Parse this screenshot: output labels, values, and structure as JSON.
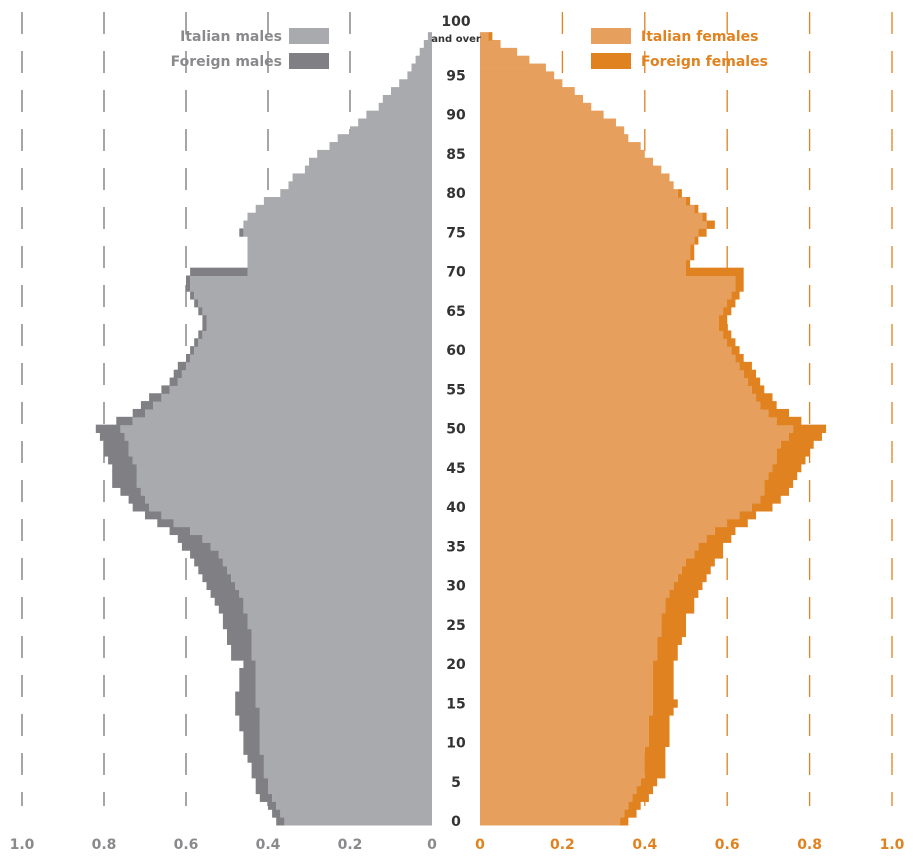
{
  "chart_data": {
    "type": "bar",
    "orientation": "horizontal",
    "colors": {
      "italian_males": "#a9aaae",
      "foreign_males": "#808084",
      "italian_females": "#e69f5c",
      "foreign_females": "#e0821f",
      "male_axis": "#8a8a8d",
      "female_axis": "#e0821f",
      "grid_male": "#777777",
      "grid_female": "#e0821f"
    },
    "legend": {
      "placement": "top",
      "males": [
        "Italian males",
        "Foreign males"
      ],
      "females": [
        "Italian females",
        "Foreign females"
      ]
    },
    "male_axis": {
      "reversed": true,
      "xlim": [
        0,
        1.0
      ],
      "tick_labels": [
        "1.0",
        "0.8",
        "0.6",
        "0.4",
        "0.2",
        "0"
      ]
    },
    "female_axis": {
      "xlim": [
        0,
        1.0
      ],
      "tick_labels": [
        "0",
        "0.2",
        "0.4",
        "0.6",
        "0.8",
        "1.0"
      ]
    },
    "grid": true,
    "age_labels": [
      "100",
      "95",
      "90",
      "85",
      "80",
      "75",
      "70",
      "65",
      "60",
      "55",
      "50",
      "45",
      "40",
      "35",
      "30",
      "25",
      "20",
      "15",
      "10",
      "5",
      "0"
    ],
    "age_label_values": [
      100,
      95,
      90,
      85,
      80,
      75,
      70,
      65,
      60,
      55,
      50,
      45,
      40,
      35,
      30,
      25,
      20,
      15,
      10,
      5,
      0
    ],
    "top_label_suffix": "and over",
    "ages": [
      0,
      1,
      2,
      3,
      4,
      5,
      6,
      7,
      8,
      9,
      10,
      11,
      12,
      13,
      14,
      15,
      16,
      17,
      18,
      19,
      20,
      21,
      22,
      23,
      24,
      25,
      26,
      27,
      28,
      29,
      30,
      31,
      32,
      33,
      34,
      35,
      36,
      37,
      38,
      39,
      40,
      41,
      42,
      43,
      44,
      45,
      46,
      47,
      48,
      49,
      50,
      51,
      52,
      53,
      54,
      55,
      56,
      57,
      58,
      59,
      60,
      61,
      62,
      63,
      64,
      65,
      66,
      67,
      68,
      69,
      70,
      71,
      72,
      73,
      74,
      75,
      76,
      77,
      78,
      79,
      80,
      81,
      82,
      83,
      84,
      85,
      86,
      87,
      88,
      89,
      90,
      91,
      92,
      93,
      94,
      95,
      96,
      97,
      98,
      99,
      100
    ],
    "series": [
      {
        "name": "Italian males",
        "values": [
          0.36,
          0.37,
          0.38,
          0.39,
          0.4,
          0.4,
          0.41,
          0.41,
          0.41,
          0.42,
          0.42,
          0.42,
          0.42,
          0.42,
          0.42,
          0.43,
          0.43,
          0.43,
          0.43,
          0.43,
          0.43,
          0.44,
          0.44,
          0.44,
          0.44,
          0.45,
          0.45,
          0.46,
          0.46,
          0.47,
          0.48,
          0.49,
          0.5,
          0.51,
          0.52,
          0.54,
          0.56,
          0.59,
          0.63,
          0.66,
          0.69,
          0.7,
          0.71,
          0.72,
          0.72,
          0.72,
          0.73,
          0.74,
          0.74,
          0.75,
          0.76,
          0.73,
          0.7,
          0.68,
          0.66,
          0.64,
          0.62,
          0.61,
          0.6,
          0.59,
          0.58,
          0.57,
          0.56,
          0.55,
          0.55,
          0.56,
          0.57,
          0.58,
          0.59,
          0.59,
          0.45,
          0.45,
          0.45,
          0.45,
          0.45,
          0.46,
          0.46,
          0.45,
          0.43,
          0.41,
          0.37,
          0.35,
          0.34,
          0.31,
          0.3,
          0.28,
          0.25,
          0.23,
          0.2,
          0.18,
          0.16,
          0.13,
          0.12,
          0.1,
          0.08,
          0.06,
          0.05,
          0.04,
          0.03,
          0.02,
          0.01
        ]
      },
      {
        "name": "Foreign males",
        "values": [
          0.02,
          0.02,
          0.02,
          0.03,
          0.03,
          0.03,
          0.03,
          0.03,
          0.04,
          0.04,
          0.04,
          0.04,
          0.05,
          0.05,
          0.06,
          0.05,
          0.05,
          0.04,
          0.04,
          0.04,
          0.03,
          0.05,
          0.05,
          0.06,
          0.06,
          0.06,
          0.06,
          0.06,
          0.07,
          0.07,
          0.07,
          0.07,
          0.07,
          0.07,
          0.07,
          0.07,
          0.06,
          0.05,
          0.04,
          0.04,
          0.04,
          0.04,
          0.05,
          0.06,
          0.06,
          0.06,
          0.06,
          0.06,
          0.06,
          0.06,
          0.06,
          0.04,
          0.03,
          0.03,
          0.03,
          0.02,
          0.02,
          0.02,
          0.02,
          0.01,
          0.01,
          0.01,
          0.01,
          0.01,
          0.01,
          0.01,
          0.01,
          0.01,
          0.01,
          0.01,
          0.14,
          0.0,
          0.0,
          0.0,
          0.0,
          0.01,
          0.0,
          0.0,
          0.0,
          0.0,
          0.0,
          0.0,
          0.0,
          0.0,
          0.0,
          0.0,
          0.0,
          0.0,
          0.0,
          0.0,
          0.0,
          0.0,
          0.0,
          0.0,
          0.0,
          0.0,
          0.0,
          0.0,
          0.0,
          0.0,
          0.0
        ]
      },
      {
        "name": "Italian females",
        "values": [
          0.34,
          0.35,
          0.36,
          0.37,
          0.38,
          0.39,
          0.4,
          0.4,
          0.4,
          0.4,
          0.41,
          0.41,
          0.41,
          0.41,
          0.42,
          0.42,
          0.42,
          0.42,
          0.42,
          0.42,
          0.42,
          0.43,
          0.43,
          0.43,
          0.44,
          0.44,
          0.44,
          0.45,
          0.45,
          0.46,
          0.47,
          0.48,
          0.49,
          0.5,
          0.52,
          0.53,
          0.55,
          0.57,
          0.6,
          0.63,
          0.66,
          0.68,
          0.69,
          0.69,
          0.7,
          0.71,
          0.72,
          0.72,
          0.73,
          0.75,
          0.76,
          0.72,
          0.7,
          0.68,
          0.67,
          0.66,
          0.65,
          0.64,
          0.63,
          0.62,
          0.61,
          0.6,
          0.59,
          0.58,
          0.58,
          0.59,
          0.6,
          0.61,
          0.62,
          0.62,
          0.5,
          0.5,
          0.51,
          0.51,
          0.52,
          0.53,
          0.55,
          0.54,
          0.52,
          0.5,
          0.48,
          0.47,
          0.46,
          0.44,
          0.42,
          0.4,
          0.39,
          0.36,
          0.35,
          0.33,
          0.3,
          0.27,
          0.25,
          0.23,
          0.2,
          0.18,
          0.16,
          0.12,
          0.09,
          0.05,
          0.02
        ]
      },
      {
        "name": "Foreign females",
        "values": [
          0.02,
          0.03,
          0.03,
          0.04,
          0.04,
          0.04,
          0.05,
          0.05,
          0.05,
          0.05,
          0.05,
          0.05,
          0.05,
          0.05,
          0.05,
          0.06,
          0.05,
          0.05,
          0.05,
          0.05,
          0.05,
          0.05,
          0.05,
          0.06,
          0.06,
          0.06,
          0.06,
          0.07,
          0.07,
          0.07,
          0.07,
          0.07,
          0.07,
          0.07,
          0.07,
          0.06,
          0.06,
          0.05,
          0.05,
          0.04,
          0.05,
          0.05,
          0.06,
          0.07,
          0.07,
          0.07,
          0.07,
          0.08,
          0.08,
          0.08,
          0.08,
          0.06,
          0.05,
          0.04,
          0.04,
          0.03,
          0.03,
          0.03,
          0.03,
          0.02,
          0.02,
          0.02,
          0.02,
          0.02,
          0.02,
          0.02,
          0.02,
          0.02,
          0.02,
          0.02,
          0.14,
          0.01,
          0.01,
          0.01,
          0.01,
          0.02,
          0.02,
          0.01,
          0.01,
          0.01,
          0.01,
          0.0,
          0.0,
          0.0,
          0.0,
          0.0,
          0.0,
          0.0,
          0.0,
          0.0,
          0.0,
          0.0,
          0.0,
          0.0,
          0.0,
          0.0,
          0.0,
          0.0,
          0.0,
          0.0,
          0.01
        ]
      }
    ]
  }
}
